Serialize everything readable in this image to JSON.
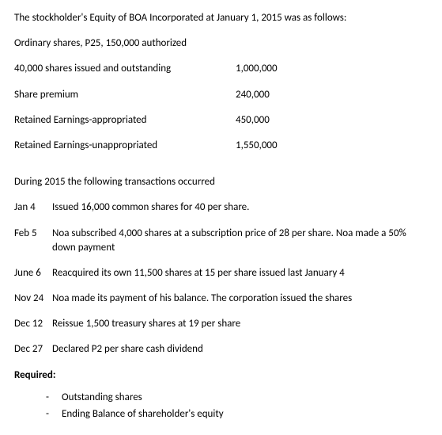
{
  "intro": "The stockholder's Equity of BOA Incorporated at January 1, 2015 was as follows:",
  "authorized": "Ordinary shares, P25, 150,000 authorized",
  "equity": [
    {
      "label": "40,000 shares issued and outstanding",
      "value": "1,000,000"
    },
    {
      "label": "Share premium",
      "value": "240,000"
    },
    {
      "label": "Retained Earnings-appropriated",
      "value": "450,000"
    },
    {
      "label": "Retained Earnings-unappropriated",
      "value": "1,550,000"
    }
  ],
  "transIntro": "During 2015 the following transactions occurred",
  "transactions": [
    {
      "date": "Jan 4",
      "desc": "Issued 16,000 common shares for 40 per share."
    },
    {
      "date": "Feb 5",
      "desc": "Noa subscribed 4,000 shares at a subscription price of 28 per share. Noa made a 50% down payment"
    },
    {
      "date": "June 6",
      "desc": "Reacquired its own 11,500 shares at 15 per share issued last January 4"
    },
    {
      "date": "Nov 24",
      "desc": "Noa made its payment of his balance. The corporation issued the shares"
    },
    {
      "date": "Dec 12",
      "desc": "Reissue 1,500 treasury shares at 19 per share"
    },
    {
      "date": "Dec 27",
      "desc": "Declared P2 per share cash dividend"
    }
  ],
  "requiredLabel": "Required:",
  "requirements": [
    "Outstanding shares",
    "Ending Balance of shareholder's equity"
  ],
  "dash": "-"
}
